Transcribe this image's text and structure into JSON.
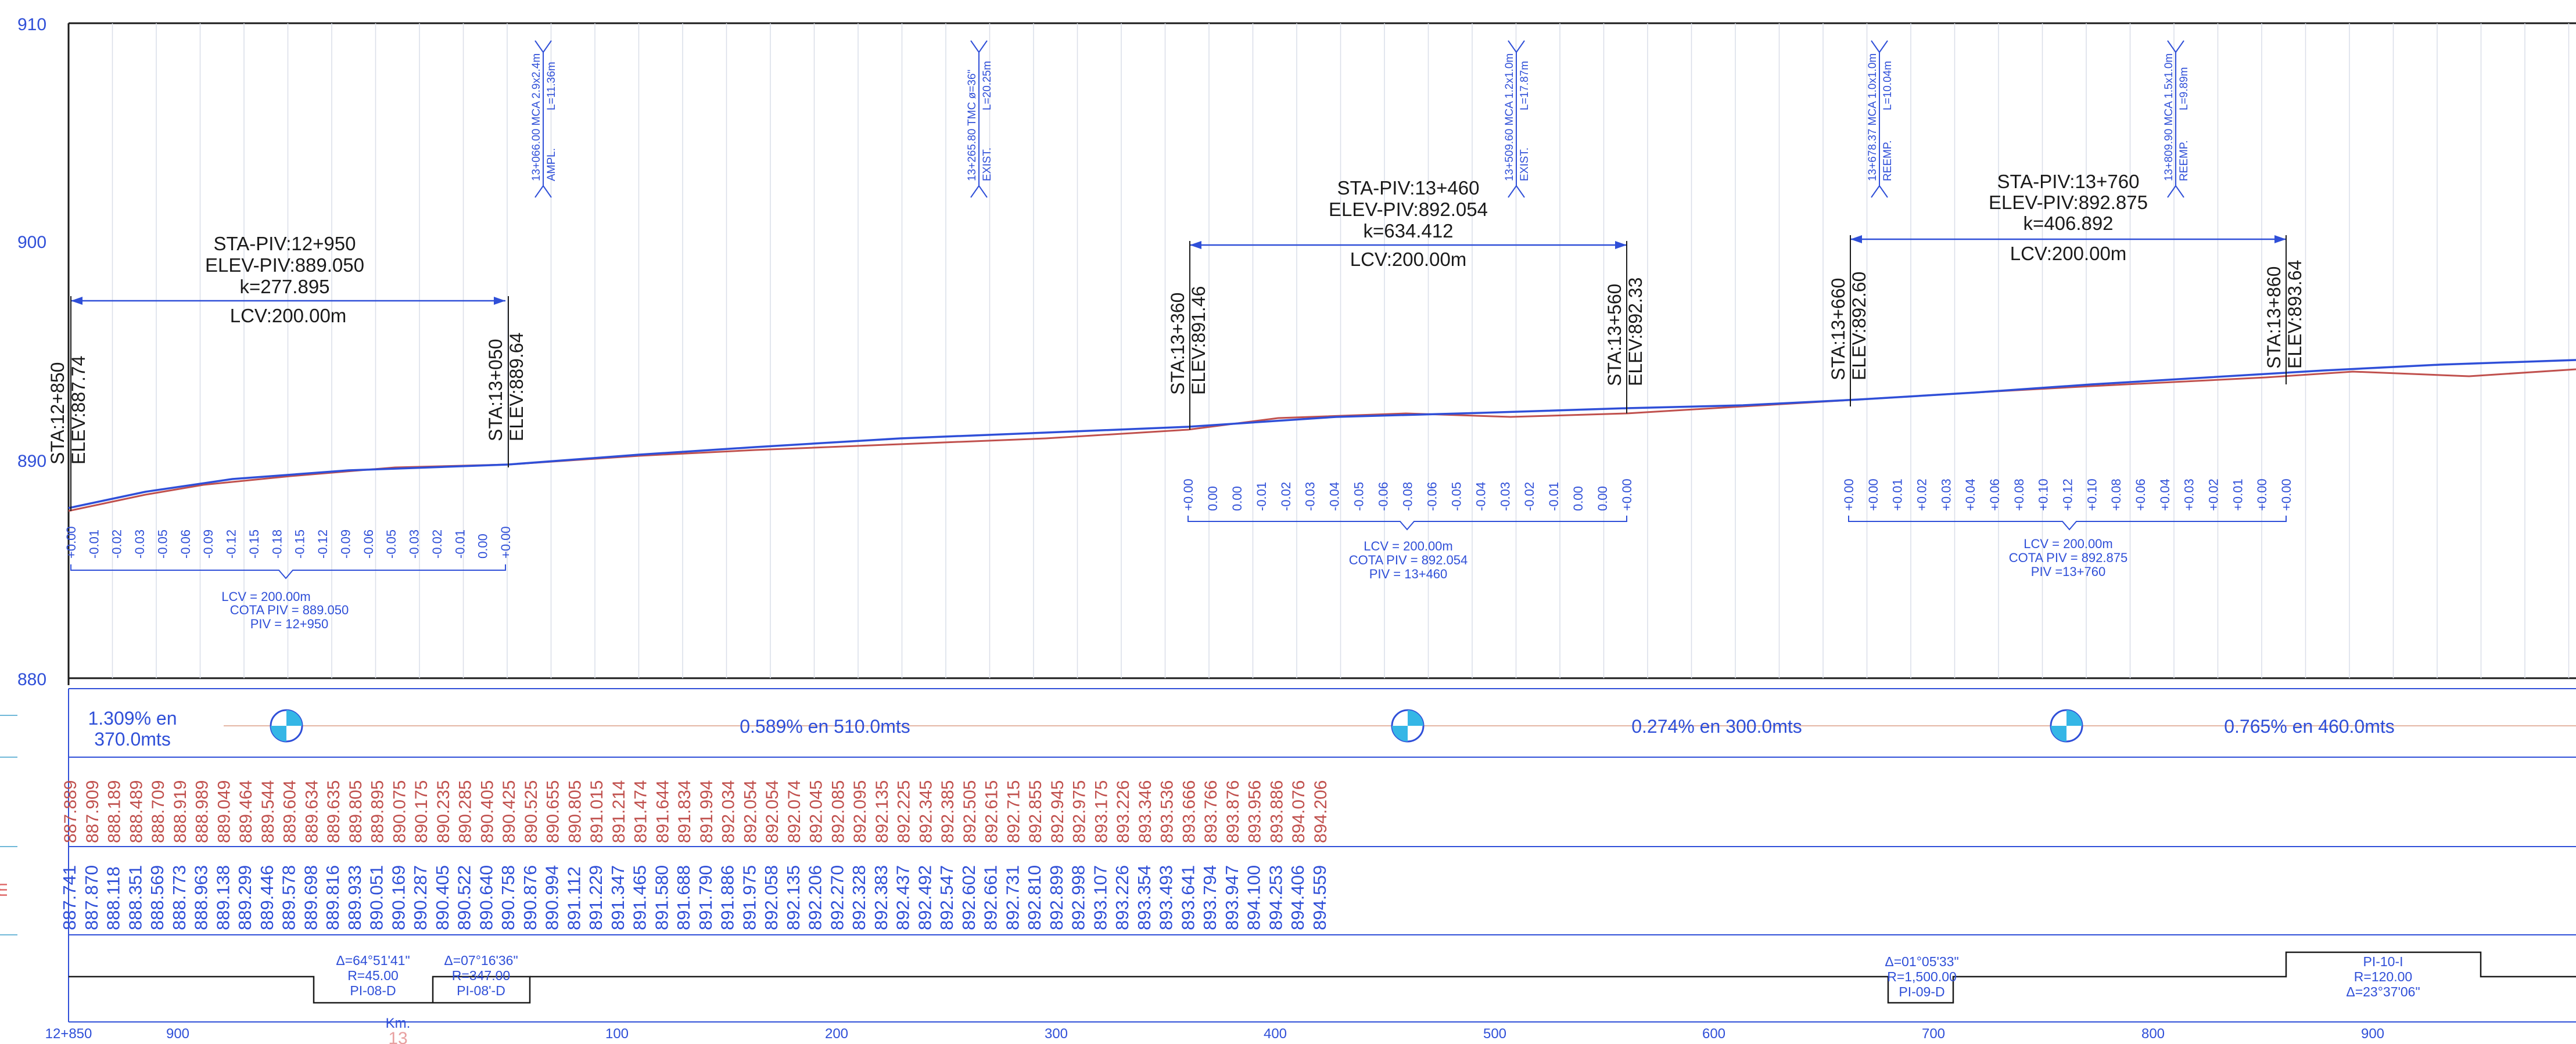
{
  "profile": {
    "elevation_axis": {
      "labels": [
        "910",
        "900",
        "890",
        "880"
      ],
      "values": [
        910,
        900,
        890,
        880
      ]
    },
    "vertical_curves": [
      {
        "piv_station": "STA-PIV:12+950",
        "piv_elevation": "ELEV-PIV:889.050",
        "k": "k=277.895",
        "lcv": "LCV:200.00m",
        "start_station": "STA:12+850",
        "start_elevation": "ELEV:887.74",
        "end_station": "STA:13+050",
        "end_elevation": "ELEV:889.64",
        "offsets": [
          "+0.00",
          "-0.01",
          "-0.02",
          "-0.03",
          "-0.05",
          "-0.06",
          "-0.09",
          "-0.12",
          "-0.15",
          "-0.18",
          "-0.15",
          "-0.12",
          "-0.09",
          "-0.06",
          "-0.05",
          "-0.03",
          "-0.02",
          "-0.01",
          "0.00",
          "+0.00"
        ],
        "summary": [
          "LCV  =  200.00m",
          "COTA  PIV  =  889.050",
          "PIV  =  12+950"
        ]
      },
      {
        "piv_station": "STA-PIV:13+460",
        "piv_elevation": "ELEV-PIV:892.054",
        "k": "k=634.412",
        "lcv": "LCV:200.00m",
        "start_station": "STA:13+360",
        "start_elevation": "ELEV:891.46",
        "end_station": "STA:13+560",
        "end_elevation": "ELEV:892.33",
        "offsets": [
          "+0.00",
          "0.00",
          "0.00",
          "-0.01",
          "-0.02",
          "-0.03",
          "-0.04",
          "-0.05",
          "-0.06",
          "-0.08",
          "-0.06",
          "-0.05",
          "-0.04",
          "-0.03",
          "-0.02",
          "-0.01",
          "0.00",
          "0.00",
          "+0.00"
        ],
        "summary": [
          "LCV  =  200.00m",
          "COTA  PIV  =  892.054",
          "PIV  =  13+460"
        ]
      },
      {
        "piv_station": "STA-PIV:13+760",
        "piv_elevation": "ELEV-PIV:892.875",
        "k": "k=406.892",
        "lcv": "LCV:200.00m",
        "start_station": "STA:13+660",
        "start_elevation": "ELEV:892.60",
        "end_station": "STA:13+860",
        "end_elevation": "ELEV:893.64",
        "offsets": [
          "+0.00",
          "+0.00",
          "+0.01",
          "+0.02",
          "+0.03",
          "+0.04",
          "+0.06",
          "+0.08",
          "+0.10",
          "+0.12",
          "+0.10",
          "+0.08",
          "+0.06",
          "+0.04",
          "+0.03",
          "+0.02",
          "+0.01",
          "+0.00",
          "+0.00"
        ],
        "summary": [
          "LCV  =  200.00m",
          "COTA  PIV  =  892.875",
          "PIV  =13+760"
        ]
      }
    ],
    "culverts": [
      {
        "line1": "13+066.00 MCA 2.9x2.4m",
        "line2": "AMPL.",
        "length": "L=11.36m"
      },
      {
        "line1": "13+265.80  TMC  ø=36\"",
        "line2": "EXIST.",
        "length": "L=20.25m"
      },
      {
        "line1": "13+509.60 MCA 1.2x1.0m",
        "line2": "EXIST.",
        "length": "L=17.87m"
      },
      {
        "line1": "13+678.37 MCA 1.0x1.0m",
        "line2": "REEMP.",
        "length": "L=10.04m"
      },
      {
        "line1": "13+809.90 MCA 1.5x1.0m",
        "line2": "REEMP.",
        "length": "L=9.89m"
      }
    ]
  },
  "grades": [
    {
      "text": "1.309% en",
      "text2": "370.0mts"
    },
    {
      "text": "0.589% en 510.0mts"
    },
    {
      "text": "0.274% en 300.0mts"
    },
    {
      "text": "0.765% en 460.0mts"
    }
  ],
  "band_side_label": "m",
  "existing_elevations": [
    "887.889",
    "887.909",
    "888.189",
    "888.489",
    "888.709",
    "888.919",
    "888.989",
    "889.049",
    "889.464",
    "889.544",
    "889.604",
    "889.634",
    "889.635",
    "889.805",
    "889.895",
    "890.075",
    "890.175",
    "890.235",
    "890.285",
    "890.405",
    "890.425",
    "890.525",
    "890.655",
    "890.805",
    "891.015",
    "891.214",
    "891.474",
    "891.644",
    "891.834",
    "891.994",
    "892.034",
    "892.054",
    "892.054",
    "892.074",
    "892.045",
    "892.085",
    "892.095",
    "892.135",
    "892.225",
    "892.345",
    "892.385",
    "892.505",
    "892.615",
    "892.715",
    "892.855",
    "892.945",
    "892.975",
    "893.175",
    "893.226",
    "893.346",
    "893.536",
    "893.666",
    "893.766",
    "893.876",
    "893.956",
    "893.886",
    "894.076",
    "894.206"
  ],
  "design_elevations": [
    "887.741",
    "887.870",
    "888.118",
    "888.351",
    "888.569",
    "888.773",
    "888.963",
    "889.138",
    "889.299",
    "889.446",
    "889.578",
    "889.698",
    "889.816",
    "889.933",
    "890.051",
    "890.169",
    "890.287",
    "890.405",
    "890.522",
    "890.640",
    "890.758",
    "890.876",
    "890.994",
    "891.112",
    "891.229",
    "891.347",
    "891.465",
    "891.580",
    "891.688",
    "891.790",
    "891.886",
    "891.975",
    "892.058",
    "892.135",
    "892.206",
    "892.270",
    "892.328",
    "892.383",
    "892.437",
    "892.492",
    "892.547",
    "892.602",
    "892.661",
    "892.731",
    "892.810",
    "892.899",
    "892.998",
    "893.107",
    "893.226",
    "893.354",
    "893.493",
    "893.641",
    "893.794",
    "893.947",
    "894.100",
    "894.253",
    "894.406",
    "894.559"
  ],
  "horizontal_curves": [
    {
      "delta": "Δ=64°51'41\"",
      "radius": "R=45.00",
      "pi": "PI-08-D"
    },
    {
      "delta": "Δ=07°16'36\"",
      "radius": "R=347.00",
      "pi": "PI-08'-D"
    },
    {
      "delta": "Δ=01°05'33\"",
      "radius": "R=1,500.00",
      "pi": "PI-09-D"
    },
    {
      "pi": "PI-10-I",
      "radius": "R=120.00",
      "delta": "Δ=23°37'06\""
    }
  ],
  "stations": {
    "labels": [
      "12+850",
      "900",
      "Km.",
      "100",
      "200",
      "300",
      "400",
      "500",
      "600",
      "700",
      "800",
      "900"
    ],
    "km_marker": "13"
  },
  "colors": {
    "design": "#2f4fd8",
    "existing": "#c0504d",
    "frame": "#1a1a1a"
  }
}
